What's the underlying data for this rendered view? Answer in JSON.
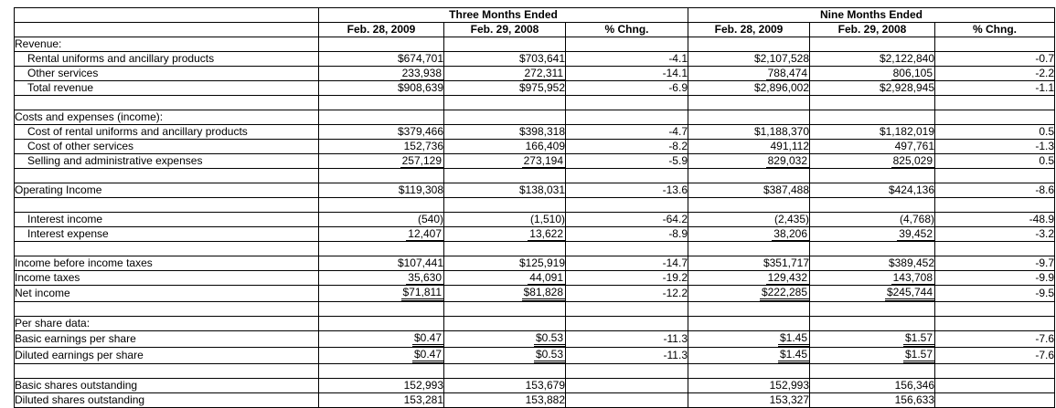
{
  "colors": {
    "background": "#ffffff",
    "text": "#000000",
    "border": "#000000"
  },
  "table": {
    "group_headers": {
      "three_months": "Three Months Ended",
      "nine_months": "Nine Months Ended"
    },
    "column_headers": [
      "Feb. 28, 2009",
      "Feb. 29, 2008",
      "% Chng.",
      "Feb. 28, 2009",
      "Feb. 29, 2008",
      "% Chng."
    ],
    "rows": [
      {
        "label": "Revenue:",
        "indent": false,
        "underline": "none",
        "values": [
          "",
          "",
          "",
          "",
          "",
          ""
        ]
      },
      {
        "label": "Rental uniforms and ancillary products",
        "indent": true,
        "underline": "none",
        "values": [
          "$674,701",
          "$703,641",
          "-4.1",
          "$2,107,528",
          "$2,122,840",
          "-0.7"
        ]
      },
      {
        "label": "Other services",
        "indent": true,
        "underline": "single",
        "values": [
          "233,938",
          "272,311",
          "-14.1",
          "788,474",
          "806,105",
          "-2.2"
        ]
      },
      {
        "label": "Total revenue",
        "indent": true,
        "underline": "none",
        "values": [
          "$908,639",
          "$975,952",
          "-6.9",
          "$2,896,002",
          "$2,928,945",
          "-1.1"
        ]
      },
      {
        "label": "",
        "indent": false,
        "underline": "none",
        "values": [
          "",
          "",
          "",
          "",
          "",
          ""
        ]
      },
      {
        "label": "Costs and expenses (income):",
        "indent": false,
        "underline": "none",
        "values": [
          "",
          "",
          "",
          "",
          "",
          ""
        ]
      },
      {
        "label": "Cost of rental uniforms and ancillary products",
        "indent": true,
        "underline": "none",
        "values": [
          "$379,466",
          "$398,318",
          "-4.7",
          "$1,188,370",
          "$1,182,019",
          "0.5"
        ]
      },
      {
        "label": "Cost of other services",
        "indent": true,
        "underline": "none",
        "values": [
          "152,736",
          "166,409",
          "-8.2",
          "491,112",
          "497,761",
          "-1.3"
        ]
      },
      {
        "label": "Selling and administrative expenses",
        "indent": true,
        "underline": "single",
        "values": [
          "257,129",
          "273,194",
          "-5.9",
          "829,032",
          "825,029",
          "0.5"
        ]
      },
      {
        "label": "",
        "indent": false,
        "underline": "none",
        "values": [
          "",
          "",
          "",
          "",
          "",
          ""
        ]
      },
      {
        "label": "Operating Income",
        "indent": false,
        "underline": "none",
        "values": [
          "$119,308",
          "$138,031",
          "-13.6",
          "$387,488",
          "$424,136",
          "-8.6"
        ]
      },
      {
        "label": "",
        "indent": false,
        "underline": "none",
        "values": [
          "",
          "",
          "",
          "",
          "",
          ""
        ]
      },
      {
        "label": "Interest income",
        "indent": true,
        "underline": "none",
        "values": [
          "(540)",
          "(1,510)",
          "-64.2",
          "(2,435)",
          "(4,768)",
          "-48.9"
        ]
      },
      {
        "label": "Interest expense",
        "indent": true,
        "underline": "single",
        "values": [
          "12,407",
          "13,622",
          "-8.9",
          "38,206",
          "39,452",
          "-3.2"
        ]
      },
      {
        "label": "",
        "indent": false,
        "underline": "none",
        "values": [
          "",
          "",
          "",
          "",
          "",
          ""
        ]
      },
      {
        "label": "Income before income taxes",
        "indent": false,
        "underline": "none",
        "values": [
          "$107,441",
          "$125,919",
          "-14.7",
          "$351,717",
          "$389,452",
          "-9.7"
        ]
      },
      {
        "label": "Income taxes",
        "indent": false,
        "underline": "single",
        "values": [
          "35,630",
          "44,091",
          "-19.2",
          "129,432",
          "143,708",
          "-9.9"
        ]
      },
      {
        "label": "Net income",
        "indent": false,
        "underline": "double",
        "values": [
          "$71,811",
          "$81,828",
          "-12.2",
          "$222,285",
          "$245,744",
          "-9.5"
        ]
      },
      {
        "label": "",
        "indent": false,
        "underline": "none",
        "values": [
          "",
          "",
          "",
          "",
          "",
          ""
        ]
      },
      {
        "label": "Per share data:",
        "indent": false,
        "underline": "none",
        "values": [
          "",
          "",
          "",
          "",
          "",
          ""
        ]
      },
      {
        "label": "Basic earnings per share",
        "indent": false,
        "underline": "double",
        "values": [
          "$0.47",
          "$0.53",
          "-11.3",
          "$1.45",
          "$1.57",
          "-7.6"
        ]
      },
      {
        "label": "Diluted earnings per share",
        "indent": false,
        "underline": "double",
        "values": [
          "$0.47",
          "$0.53",
          "-11.3",
          "$1.45",
          "$1.57",
          "-7.6"
        ]
      },
      {
        "label": "",
        "indent": false,
        "underline": "none",
        "values": [
          "",
          "",
          "",
          "",
          "",
          ""
        ]
      },
      {
        "label": "Basic shares outstanding",
        "indent": false,
        "underline": "none",
        "values": [
          "152,993",
          "153,679",
          "",
          "152,993",
          "156,346",
          ""
        ]
      },
      {
        "label": "Diluted shares outstanding",
        "indent": false,
        "underline": "none",
        "values": [
          "153,281",
          "153,882",
          "",
          "153,327",
          "156,633",
          ""
        ]
      }
    ]
  }
}
